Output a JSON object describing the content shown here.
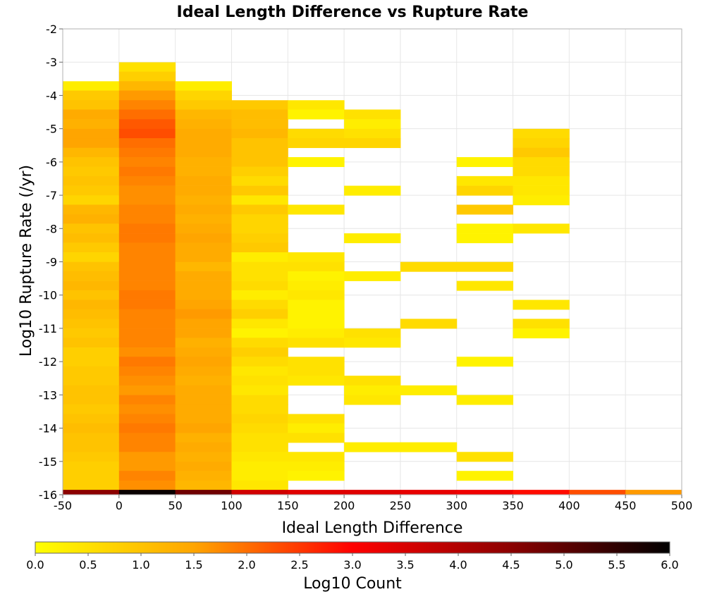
{
  "chart_data": {
    "type": "heatmap",
    "title": "Ideal Length Difference vs Rupture Rate",
    "xlabel": "Ideal Length Difference",
    "ylabel": "Log10 Rupture Rate (/yr)",
    "colorbar_label": "Log10 Count",
    "xlim": [
      -50,
      500
    ],
    "ylim": [
      -16,
      -2
    ],
    "color_range": [
      0,
      6
    ],
    "grid": true,
    "x_ticks": [
      "-50",
      "0",
      "50",
      "100",
      "150",
      "200",
      "250",
      "300",
      "350",
      "400",
      "450",
      "500"
    ],
    "y_ticks": [
      "-2",
      "-3",
      "-4",
      "-5",
      "-6",
      "-7",
      "-8",
      "-9",
      "-10",
      "-11",
      "-12",
      "-13",
      "-14",
      "-15",
      "-16"
    ],
    "colorbar_ticks": [
      "0.0",
      "0.5",
      "1.0",
      "1.5",
      "2.0",
      "2.5",
      "3.0",
      "3.5",
      "4.0",
      "4.5",
      "5.0",
      "5.5",
      "6.0"
    ],
    "colorscale": [
      "#ffff00",
      "#ffa500",
      "#ff0000",
      "#8b0000",
      "#000000"
    ],
    "x_bins": [
      -50,
      0,
      50,
      100,
      150,
      200,
      250,
      300,
      350,
      400,
      450
    ],
    "bin_width_x": 50,
    "bin_height_y": 0.286,
    "y_bins_from_top": [
      -3.29,
      -3.57,
      -3.86,
      -4.14,
      -4.43,
      -4.71,
      -5.0,
      -5.29,
      -5.57,
      -5.86,
      -6.14,
      -6.43,
      -6.71,
      -7.0,
      -7.29,
      -7.57,
      -7.86,
      -8.14,
      -8.43,
      -8.71,
      -9.0,
      -9.29,
      -9.57,
      -9.86,
      -10.14,
      -10.43,
      -10.71,
      -11.0,
      -11.29,
      -11.57,
      -11.86,
      -12.14,
      -12.43,
      -12.71,
      -13.0,
      -13.29,
      -13.57,
      -13.86,
      -14.14,
      -14.43,
      -14.71,
      -15.0,
      -15.29,
      -15.57,
      -15.86,
      -16.14
    ],
    "columns": [
      {
        "x": -50,
        "values": [
          null,
          null,
          0.3,
          0.9,
          1.0,
          1.4,
          1.3,
          1.5,
          1.5,
          1.2,
          1.0,
          0.9,
          1.0,
          0.9,
          0.7,
          1.2,
          1.3,
          1.0,
          1.1,
          0.9,
          0.7,
          1.0,
          1.1,
          1.2,
          1.0,
          1.2,
          1.1,
          1.0,
          0.9,
          1.0,
          0.8,
          0.8,
          0.9,
          0.9,
          1.0,
          1.0,
          0.9,
          1.0,
          1.1,
          1.0,
          1.0,
          0.9,
          0.8,
          0.8,
          0.8,
          4.5
        ]
      },
      {
        "x": 0,
        "values": [
          0.5,
          0.8,
          1.2,
          1.6,
          1.8,
          2.0,
          2.2,
          2.3,
          2.0,
          1.9,
          1.8,
          1.9,
          1.8,
          1.7,
          1.7,
          1.8,
          1.8,
          1.9,
          1.9,
          1.8,
          1.8,
          1.8,
          1.8,
          1.8,
          1.9,
          1.9,
          1.8,
          1.8,
          1.8,
          1.8,
          1.7,
          1.9,
          1.8,
          1.7,
          1.6,
          1.8,
          1.7,
          1.8,
          1.9,
          1.8,
          1.8,
          1.6,
          1.6,
          1.8,
          1.7,
          5.9
        ]
      },
      {
        "x": 50,
        "values": [
          null,
          null,
          0.3,
          0.7,
          0.9,
          1.2,
          1.3,
          1.4,
          1.4,
          1.4,
          1.3,
          1.3,
          1.4,
          1.4,
          1.3,
          1.4,
          1.3,
          1.4,
          1.5,
          1.4,
          1.4,
          1.2,
          1.4,
          1.4,
          1.4,
          1.5,
          1.6,
          1.5,
          1.5,
          1.3,
          1.4,
          1.5,
          1.4,
          1.3,
          1.4,
          1.4,
          1.4,
          1.4,
          1.5,
          1.3,
          1.4,
          1.3,
          1.4,
          1.3,
          1.2,
          4.8
        ]
      },
      {
        "x": 100,
        "values": [
          null,
          null,
          null,
          null,
          0.9,
          1.1,
          1.1,
          1.2,
          1.0,
          1.0,
          1.0,
          0.8,
          0.6,
          0.9,
          0.4,
          0.9,
          0.7,
          0.7,
          0.8,
          0.9,
          0.3,
          0.5,
          0.5,
          0.6,
          0.3,
          0.6,
          0.8,
          0.4,
          0.2,
          0.6,
          0.8,
          0.6,
          0.4,
          0.5,
          0.4,
          0.6,
          0.6,
          0.7,
          0.6,
          0.5,
          0.5,
          0.4,
          0.3,
          0.3,
          0.4,
          3.6
        ]
      },
      {
        "x": 150,
        "values": [
          null,
          null,
          null,
          null,
          0.4,
          0.2,
          null,
          0.6,
          0.7,
          null,
          0.2,
          null,
          null,
          null,
          null,
          0.4,
          null,
          null,
          null,
          null,
          0.4,
          0.5,
          0.2,
          0.3,
          0.4,
          0.2,
          0.2,
          0.2,
          0.3,
          0.5,
          null,
          0.5,
          0.5,
          0.4,
          null,
          null,
          null,
          0.5,
          0.3,
          0.5,
          null,
          0.4,
          0.3,
          0.2,
          null,
          3.4
        ]
      },
      {
        "x": 200,
        "values": [
          null,
          null,
          null,
          null,
          null,
          0.5,
          0.3,
          0.5,
          0.7,
          null,
          null,
          null,
          null,
          0.3,
          null,
          null,
          null,
          null,
          0.3,
          null,
          null,
          null,
          0.3,
          null,
          null,
          null,
          null,
          null,
          0.5,
          0.4,
          null,
          null,
          null,
          0.5,
          0.3,
          0.4,
          null,
          null,
          null,
          null,
          0.3,
          null,
          null,
          null,
          null,
          3.4
        ]
      },
      {
        "x": 250,
        "values": [
          null,
          null,
          null,
          null,
          null,
          null,
          null,
          null,
          null,
          null,
          null,
          null,
          null,
          null,
          null,
          null,
          null,
          null,
          null,
          null,
          null,
          0.6,
          null,
          null,
          null,
          null,
          null,
          0.6,
          null,
          null,
          null,
          null,
          null,
          null,
          0.3,
          null,
          null,
          null,
          null,
          null,
          0.3,
          null,
          null,
          null,
          null,
          3.3
        ]
      },
      {
        "x": 300,
        "values": [
          null,
          null,
          null,
          null,
          null,
          null,
          null,
          null,
          null,
          null,
          0.2,
          null,
          0.4,
          0.7,
          null,
          0.9,
          null,
          0.2,
          0.2,
          null,
          null,
          0.6,
          null,
          0.4,
          null,
          null,
          null,
          null,
          null,
          null,
          null,
          0.2,
          null,
          null,
          null,
          0.3,
          null,
          null,
          null,
          null,
          null,
          0.5,
          null,
          0.2,
          null,
          3.2
        ]
      },
      {
        "x": 350,
        "values": [
          null,
          null,
          null,
          null,
          null,
          null,
          null,
          0.6,
          0.7,
          0.9,
          0.6,
          0.6,
          0.4,
          0.4,
          0.3,
          null,
          null,
          0.4,
          null,
          null,
          null,
          null,
          null,
          null,
          null,
          0.4,
          null,
          0.5,
          0.2,
          null,
          null,
          null,
          null,
          null,
          null,
          null,
          null,
          null,
          null,
          null,
          null,
          null,
          null,
          null,
          null,
          2.9
        ]
      },
      {
        "x": 400,
        "values": [
          null,
          null,
          null,
          null,
          null,
          null,
          null,
          null,
          null,
          null,
          null,
          null,
          null,
          null,
          null,
          null,
          null,
          null,
          null,
          null,
          null,
          null,
          null,
          null,
          null,
          null,
          null,
          null,
          null,
          null,
          null,
          null,
          null,
          null,
          null,
          null,
          null,
          null,
          null,
          null,
          null,
          null,
          null,
          null,
          null,
          2.3
        ]
      },
      {
        "x": 450,
        "values": [
          null,
          null,
          null,
          null,
          null,
          null,
          null,
          null,
          null,
          null,
          null,
          null,
          null,
          null,
          null,
          null,
          null,
          null,
          null,
          null,
          null,
          null,
          null,
          null,
          null,
          null,
          null,
          null,
          null,
          null,
          null,
          null,
          null,
          null,
          null,
          null,
          null,
          null,
          null,
          null,
          null,
          null,
          null,
          null,
          null,
          1.6
        ]
      }
    ]
  }
}
